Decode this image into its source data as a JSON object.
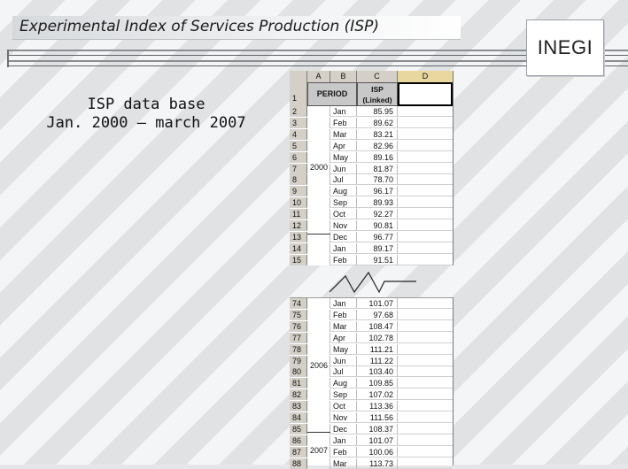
{
  "slide": {
    "title": "Experimental Index of Services Production (ISP)",
    "logo_text": "INEGI",
    "caption_line1": "ISP data base",
    "caption_line2": "Jan. 2000 – march 2007"
  },
  "sheet": {
    "col_headers": [
      "A",
      "B",
      "C",
      "D"
    ],
    "period_header": "PERIOD",
    "isp_header_line1": "ISP",
    "isp_header_line2": "(Linked)",
    "header_row_number": "1",
    "top_year": "2000",
    "bottom_year_1": "2006",
    "bottom_year_2": "2007",
    "top_rows": [
      {
        "n": "2",
        "m": "Jan",
        "v": "85.95"
      },
      {
        "n": "3",
        "m": "Feb",
        "v": "89.62"
      },
      {
        "n": "4",
        "m": "Mar",
        "v": "83.21"
      },
      {
        "n": "5",
        "m": "Apr",
        "v": "82.96"
      },
      {
        "n": "6",
        "m": "May",
        "v": "89.16"
      },
      {
        "n": "7",
        "m": "Jun",
        "v": "81.87"
      },
      {
        "n": "8",
        "m": "Jul",
        "v": "78.70"
      },
      {
        "n": "9",
        "m": "Aug",
        "v": "96.17"
      },
      {
        "n": "10",
        "m": "Sep",
        "v": "89.93"
      },
      {
        "n": "11",
        "m": "Oct",
        "v": "92.27"
      },
      {
        "n": "12",
        "m": "Nov",
        "v": "90.81"
      },
      {
        "n": "13",
        "m": "Dec",
        "v": "96.77"
      },
      {
        "n": "14",
        "m": "Jan",
        "v": "89.17"
      },
      {
        "n": "15",
        "m": "Feb",
        "v": "91.51"
      }
    ],
    "bottom_rows": [
      {
        "n": "74",
        "m": "Jan",
        "v": "101.07"
      },
      {
        "n": "75",
        "m": "Feb",
        "v": "97.68"
      },
      {
        "n": "76",
        "m": "Mar",
        "v": "108.47"
      },
      {
        "n": "77",
        "m": "Apr",
        "v": "102.78"
      },
      {
        "n": "78",
        "m": "May",
        "v": "111.21"
      },
      {
        "n": "79",
        "m": "Jun",
        "v": "111.22"
      },
      {
        "n": "80",
        "m": "Jul",
        "v": "103.40"
      },
      {
        "n": "81",
        "m": "Aug",
        "v": "109.85"
      },
      {
        "n": "82",
        "m": "Sep",
        "v": "107.02"
      },
      {
        "n": "83",
        "m": "Oct",
        "v": "113.36"
      },
      {
        "n": "84",
        "m": "Nov",
        "v": "111.56"
      },
      {
        "n": "85",
        "m": "Dec",
        "v": "108.37"
      },
      {
        "n": "86",
        "m": "Jan",
        "v": "101.07"
      },
      {
        "n": "87",
        "m": "Feb",
        "v": "100.06"
      },
      {
        "n": "88",
        "m": "Mar",
        "v": "113.73"
      }
    ]
  }
}
